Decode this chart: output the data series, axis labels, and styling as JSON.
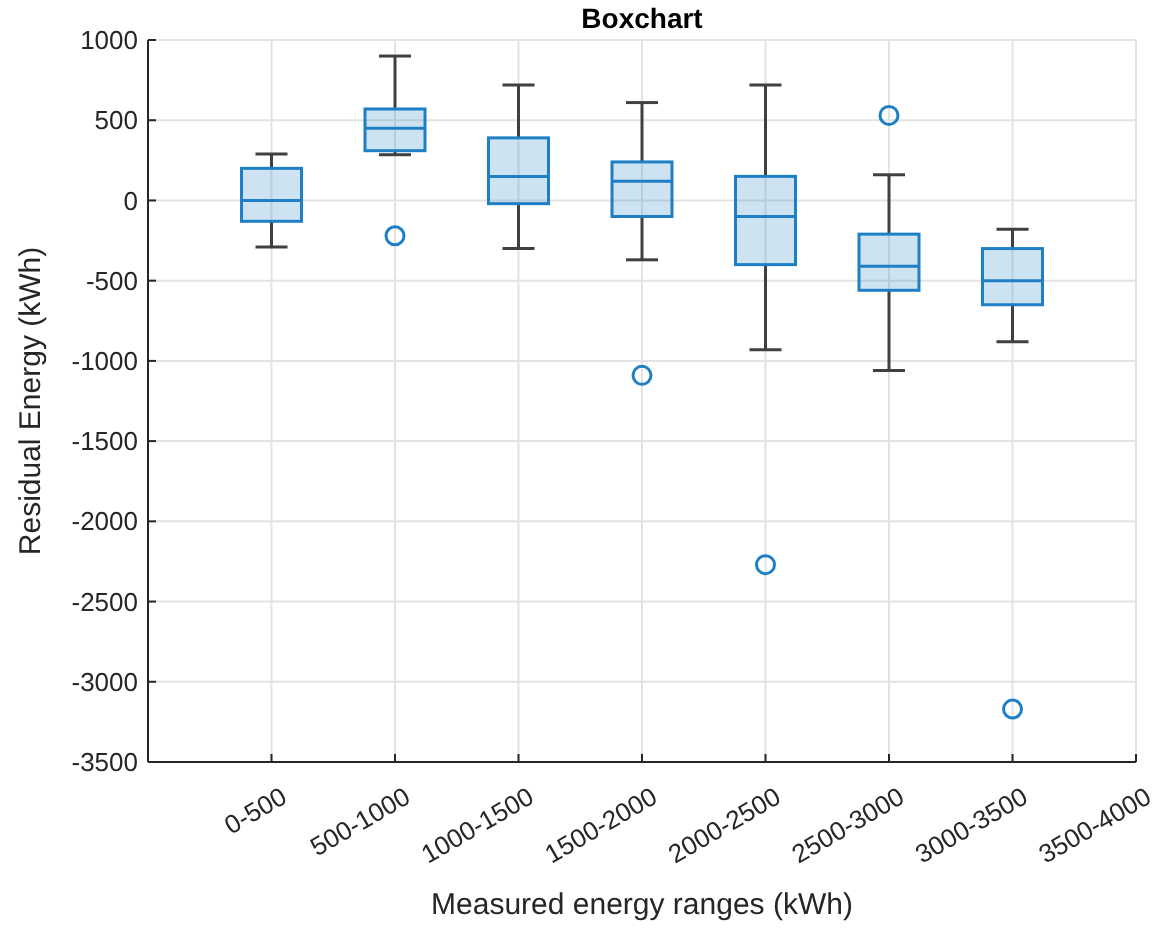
{
  "chart_data": {
    "type": "box",
    "title": "Boxchart",
    "xlabel": "Measured energy ranges (kWh)",
    "ylabel": "Residual Energy (kWh)",
    "categories": [
      "0-500",
      "500-1000",
      "1000-1500",
      "1500-2000",
      "2000-2500",
      "2500-3000",
      "3000-3500",
      "3500-4000"
    ],
    "color": "#1f7fc6",
    "boxes": [
      {
        "low": -290,
        "q1": -130,
        "median": 0,
        "q3": 200,
        "high": 290
      },
      {
        "low": 285,
        "q1": 310,
        "median": 450,
        "q3": 570,
        "high": 900,
        "outliers": [
          -220
        ]
      },
      {
        "low": -300,
        "q1": -20,
        "median": 150,
        "q3": 390,
        "high": 720
      },
      {
        "low": -370,
        "q1": -100,
        "median": 120,
        "q3": 240,
        "high": 610,
        "outliers": [
          -1090
        ]
      },
      {
        "low": -930,
        "q1": -400,
        "median": -100,
        "q3": 150,
        "high": 720,
        "outliers": [
          -2270
        ]
      },
      {
        "low": -1060,
        "q1": -560,
        "median": -410,
        "q3": -210,
        "high": 160,
        "outliers": [
          530
        ]
      },
      {
        "low": -880,
        "q1": -650,
        "median": -500,
        "q3": -300,
        "high": -180,
        "outliers": [
          -3170
        ]
      },
      null
    ],
    "ylim": [
      -3500,
      1000
    ],
    "yticks": [
      -3500,
      -3000,
      -2500,
      -2000,
      -1500,
      -1000,
      -500,
      0,
      500,
      1000
    ],
    "grid": true
  }
}
